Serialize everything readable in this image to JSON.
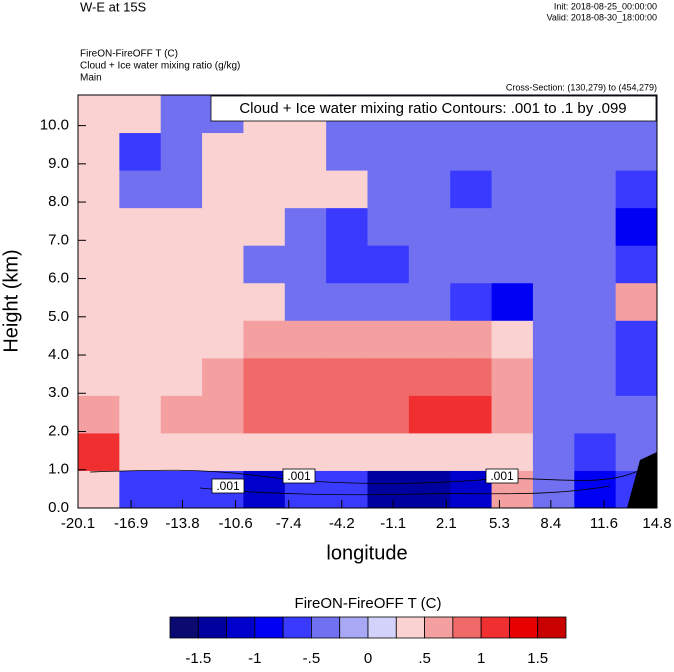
{
  "chart_data": {
    "type": "heatmap",
    "title": "W-E at 15S",
    "init_text": "Init: 2018-08-25_00:00:00",
    "valid_text": "Valid: 2018-08-30_18:00:00",
    "field_title": "FireON-FireOFF T   (C)",
    "contour_title": "Cloud + Ice water mixing ratio   (g/kg)",
    "subtitle": "Main",
    "cross_section": "Cross-Section: (130,279) to (454,279)",
    "contour_info": "Cloud + Ice water mixing ratio Contours: .001 to .1 by .099",
    "contour_labels": [
      ".001",
      ".001",
      ".001"
    ],
    "xlabel": "longitude",
    "ylabel": "Height (km)",
    "xlim": [
      -20.1,
      14.8
    ],
    "ylim": [
      0,
      10.8
    ],
    "xticks": [
      -20.1,
      -16.9,
      -13.8,
      -10.6,
      -7.4,
      -4.2,
      -1.1,
      2.1,
      5.3,
      8.4,
      11.6,
      14.8
    ],
    "yticks": [
      {
        "value": 0,
        "label": "0.0"
      },
      {
        "value": 1,
        "label": "1.0"
      },
      {
        "value": 2,
        "label": "2.0"
      },
      {
        "value": 3,
        "label": "3.0"
      },
      {
        "value": 4,
        "label": "4.0"
      },
      {
        "value": 5,
        "label": "5.0"
      },
      {
        "value": 6,
        "label": "6.0"
      },
      {
        "value": 7,
        "label": "7.0"
      },
      {
        "value": 8,
        "label": "8.0"
      },
      {
        "value": 9,
        "label": "9.0"
      },
      {
        "value": 10,
        "label": "10.0"
      }
    ],
    "z": [
      [
        0.3,
        -0.6,
        -0.6,
        -0.6,
        -1.1,
        -0.6,
        -0.6,
        -1.4,
        -1.4,
        -1.1,
        0.6,
        -0.3,
        -0.9,
        -0.6
      ],
      [
        1.1,
        0.3,
        0.3,
        0.3,
        0.3,
        0.3,
        0.3,
        0.3,
        0.3,
        0.3,
        0.3,
        -0.3,
        -0.6,
        -0.3
      ],
      [
        0.6,
        0.3,
        0.6,
        0.6,
        0.9,
        0.9,
        0.9,
        0.9,
        1.1,
        1.1,
        0.6,
        -0.3,
        -0.3,
        -0.3
      ],
      [
        0.3,
        0.3,
        0.3,
        0.6,
        0.9,
        0.9,
        0.9,
        0.9,
        0.9,
        0.9,
        0.6,
        -0.3,
        -0.3,
        -0.6
      ],
      [
        0.3,
        0.3,
        0.3,
        0.3,
        0.6,
        0.6,
        0.6,
        0.6,
        0.6,
        0.6,
        0.3,
        -0.3,
        -0.3,
        -0.6
      ],
      [
        0.3,
        0.3,
        0.3,
        0.3,
        0.3,
        -0.3,
        -0.3,
        -0.3,
        -0.3,
        -0.6,
        -0.9,
        -0.3,
        -0.3,
        0.6
      ],
      [
        0.3,
        0.3,
        0.3,
        0.3,
        -0.3,
        -0.3,
        -0.6,
        -0.6,
        -0.3,
        -0.3,
        -0.3,
        -0.3,
        -0.3,
        -0.6
      ],
      [
        0.3,
        0.3,
        0.3,
        0.3,
        0.3,
        -0.3,
        -0.6,
        -0.3,
        -0.3,
        -0.3,
        -0.3,
        -0.3,
        -0.3,
        -0.9
      ],
      [
        0.3,
        -0.3,
        -0.3,
        0.3,
        0.3,
        0.3,
        0.3,
        -0.3,
        -0.3,
        -0.6,
        -0.3,
        -0.3,
        -0.3,
        -0.6
      ],
      [
        0.3,
        -0.6,
        -0.3,
        0.3,
        0.3,
        0.3,
        -0.3,
        -0.3,
        -0.3,
        -0.3,
        -0.3,
        -0.3,
        -0.3,
        -0.3
      ],
      [
        0.3,
        0.3,
        -0.3,
        -0.3,
        0.3,
        0.3,
        -0.3,
        -0.3,
        -0.3,
        -0.3,
        -0.3,
        -0.3,
        -0.3,
        -0.3
      ]
    ],
    "colorbar": {
      "title": "FireON-FireOFF T  (C)",
      "clim": [
        -1.75,
        1.75
      ],
      "colors": [
        "#0a0a70",
        "#00009e",
        "#0000cc",
        "#0000f5",
        "#3a3aff",
        "#7070f0",
        "#a8a8f5",
        "#d2d2fa",
        "#fad2d2",
        "#f5a0a0",
        "#f06a6a",
        "#f03030",
        "#e60000",
        "#c80000"
      ],
      "ticks": [
        -1.5,
        -1,
        {
          "value": -0.5,
          "label": "-.5"
        },
        0,
        {
          "value": 0.5,
          "label": ".5"
        },
        1,
        1.5
      ]
    }
  }
}
